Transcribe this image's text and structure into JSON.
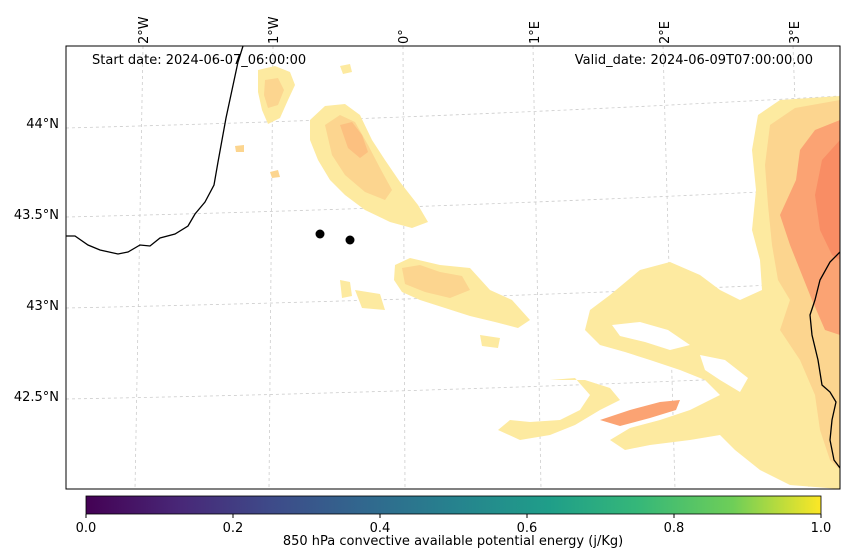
{
  "header": {
    "start_date": "Start date: 2024-06-07_06:00:00",
    "valid_date": "Valid_date: 2024-06-09T07:00:00.00"
  },
  "map": {
    "lon_ticks": [
      "2°W",
      "1°W",
      "0°",
      "1°E",
      "2°E",
      "3°E"
    ],
    "lat_ticks": [
      "44°N",
      "43.5°N",
      "43°N",
      "42.5°N"
    ],
    "points_count_shown": 2
  },
  "colorbar": {
    "label": "850 hPa convective available potential energy (j/Kg)",
    "ticks": [
      "0.0",
      "0.2",
      "0.4",
      "0.6",
      "0.8",
      "1.0"
    ],
    "range": [
      0.0,
      1.0
    ],
    "colormap": "viridis"
  },
  "colors": {
    "cape_light": "#fdeaa0",
    "cape_mid": "#fcd58f",
    "cape_dark": "#fba373",
    "coast": "#000000",
    "gridline": "#cccccc"
  }
}
